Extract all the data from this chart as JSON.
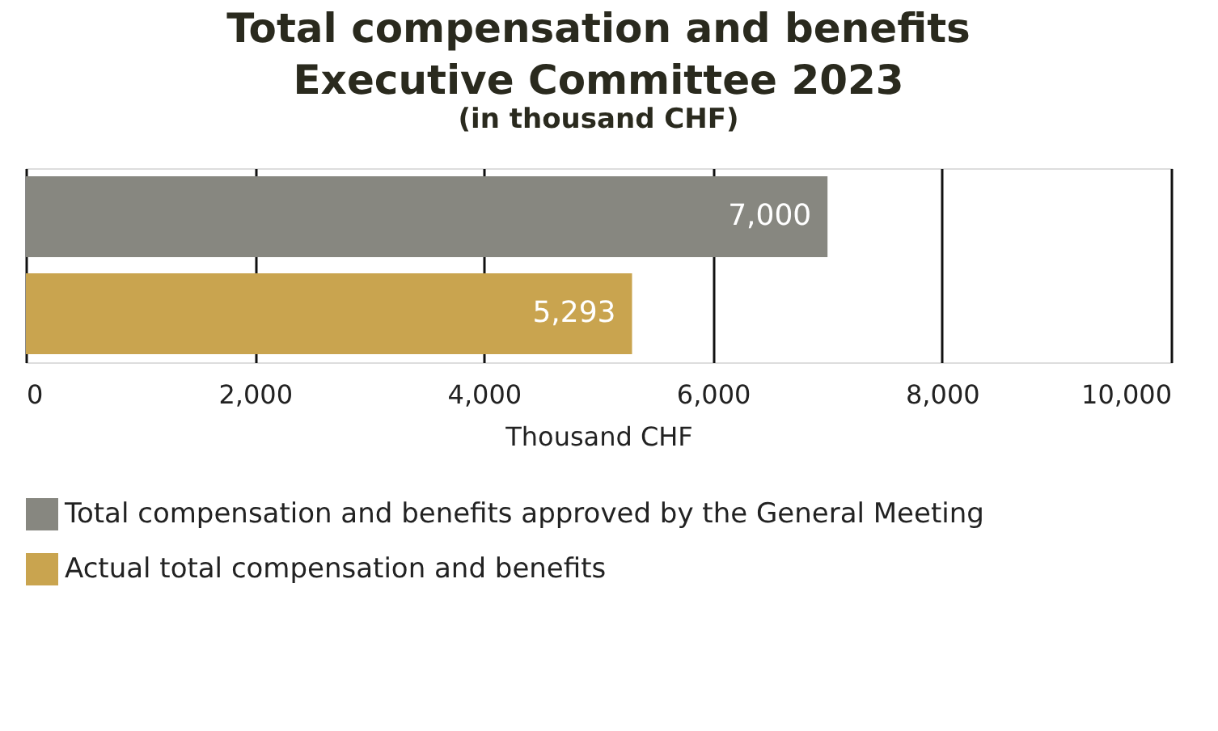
{
  "chart_data": {
    "type": "bar",
    "orientation": "horizontal",
    "title": "Total compensation and benefits\nExecutive Committee 2023",
    "subtitle": "(in thousand CHF)",
    "xlabel": "Thousand CHF",
    "categories": [
      null,
      null
    ],
    "series": [
      {
        "name": "Total compensation and benefits approved by the General Meeting",
        "color": "#878780",
        "values": [
          7000,
          null
        ],
        "value_labels": [
          "7,000",
          null
        ]
      },
      {
        "name": "Actual total compensation and benefits",
        "color": "#c9a44f",
        "values": [
          null,
          5293
        ],
        "value_labels": [
          null,
          "5,293"
        ]
      }
    ],
    "xlim": [
      0,
      10000
    ],
    "xticks": [
      0,
      {
        "value": 2000,
        "label": "2,000"
      },
      {
        "value": 4000,
        "label": "4,000"
      },
      {
        "value": 6000,
        "label": "6,000"
      },
      {
        "value": 8000,
        "label": "8,000"
      },
      {
        "value": 10000,
        "label": "10,000"
      }
    ],
    "grid": "x",
    "legend": "bottom"
  }
}
